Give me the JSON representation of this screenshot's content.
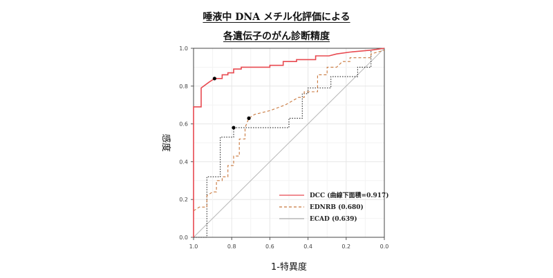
{
  "title_line1": "唾液中 DNA メチル化評価による",
  "title_line2": "各遺伝子のがん診断精度",
  "chart_data": {
    "type": "line",
    "xlabel": "1-特異度",
    "ylabel": "感度",
    "xlim": [
      1.0,
      0.0
    ],
    "ylim": [
      0.0,
      1.0
    ],
    "x_ticks": [
      "1.0",
      "0.8",
      "0.6",
      "0.4",
      "0.2",
      "0.0"
    ],
    "y_ticks": [
      "0.0",
      "0.2",
      "0.4",
      "0.6",
      "0.8",
      "1.0"
    ],
    "grid": true,
    "legend_position": "bottom-right",
    "series": [
      {
        "name": "DCC (曲線下面積=0.917)",
        "color": "#e8484f",
        "dash": "solid",
        "points": [
          [
            1.0,
            0.0
          ],
          [
            1.0,
            0.69
          ],
          [
            0.96,
            0.69
          ],
          [
            0.96,
            0.79
          ],
          [
            0.92,
            0.82
          ],
          [
            0.89,
            0.84
          ],
          [
            0.85,
            0.84
          ],
          [
            0.85,
            0.86
          ],
          [
            0.82,
            0.86
          ],
          [
            0.82,
            0.87
          ],
          [
            0.79,
            0.87
          ],
          [
            0.79,
            0.89
          ],
          [
            0.75,
            0.89
          ],
          [
            0.75,
            0.9
          ],
          [
            0.6,
            0.9
          ],
          [
            0.6,
            0.91
          ],
          [
            0.57,
            0.91
          ],
          [
            0.53,
            0.91
          ],
          [
            0.53,
            0.93
          ],
          [
            0.46,
            0.93
          ],
          [
            0.46,
            0.94
          ],
          [
            0.36,
            0.94
          ],
          [
            0.36,
            0.96
          ],
          [
            0.29,
            0.96
          ],
          [
            0.25,
            0.97
          ],
          [
            0.18,
            0.98
          ],
          [
            0.07,
            0.99
          ],
          [
            0.0,
            1.0
          ]
        ]
      },
      {
        "name": "EDNRB (0.680)",
        "color": "#c8763a",
        "dash": "4,3",
        "points": [
          [
            1.0,
            0.14
          ],
          [
            0.97,
            0.16
          ],
          [
            0.93,
            0.16
          ],
          [
            0.93,
            0.22
          ],
          [
            0.9,
            0.24
          ],
          [
            0.88,
            0.24
          ],
          [
            0.88,
            0.3
          ],
          [
            0.85,
            0.3
          ],
          [
            0.85,
            0.32
          ],
          [
            0.82,
            0.32
          ],
          [
            0.82,
            0.38
          ],
          [
            0.79,
            0.38
          ],
          [
            0.79,
            0.43
          ],
          [
            0.76,
            0.43
          ],
          [
            0.76,
            0.52
          ],
          [
            0.73,
            0.52
          ],
          [
            0.73,
            0.58
          ],
          [
            0.71,
            0.63
          ],
          [
            0.68,
            0.65
          ],
          [
            0.6,
            0.67
          ],
          [
            0.52,
            0.7
          ],
          [
            0.45,
            0.74
          ],
          [
            0.42,
            0.74
          ],
          [
            0.42,
            0.77
          ],
          [
            0.35,
            0.77
          ],
          [
            0.35,
            0.86
          ],
          [
            0.3,
            0.86
          ],
          [
            0.3,
            0.9
          ],
          [
            0.25,
            0.9
          ],
          [
            0.22,
            0.93
          ],
          [
            0.18,
            0.93
          ],
          [
            0.18,
            0.95
          ],
          [
            0.07,
            0.95
          ],
          [
            0.07,
            0.97
          ],
          [
            0.0,
            0.99
          ]
        ]
      },
      {
        "name": "ECAD (0.639)",
        "color": "#222222",
        "dash": "1.5,2",
        "points": [
          [
            1.0,
            0.0
          ],
          [
            0.93,
            0.0
          ],
          [
            0.93,
            0.32
          ],
          [
            0.86,
            0.32
          ],
          [
            0.86,
            0.53
          ],
          [
            0.79,
            0.53
          ],
          [
            0.79,
            0.58
          ],
          [
            0.5,
            0.58
          ],
          [
            0.5,
            0.63
          ],
          [
            0.43,
            0.63
          ],
          [
            0.43,
            0.76
          ],
          [
            0.4,
            0.76
          ],
          [
            0.4,
            0.79
          ],
          [
            0.28,
            0.79
          ],
          [
            0.28,
            0.85
          ],
          [
            0.14,
            0.85
          ],
          [
            0.14,
            0.9
          ],
          [
            0.07,
            0.9
          ],
          [
            0.07,
            0.99
          ],
          [
            0.0,
            1.0
          ]
        ]
      },
      {
        "name": "",
        "color": "#bbbbbb",
        "dash": "solid",
        "points": [
          [
            1.0,
            0.0
          ],
          [
            0.0,
            1.0
          ]
        ]
      }
    ],
    "markers": [
      {
        "x": 0.89,
        "y": 0.84
      },
      {
        "x": 0.79,
        "y": 0.58
      },
      {
        "x": 0.71,
        "y": 0.63
      }
    ]
  }
}
